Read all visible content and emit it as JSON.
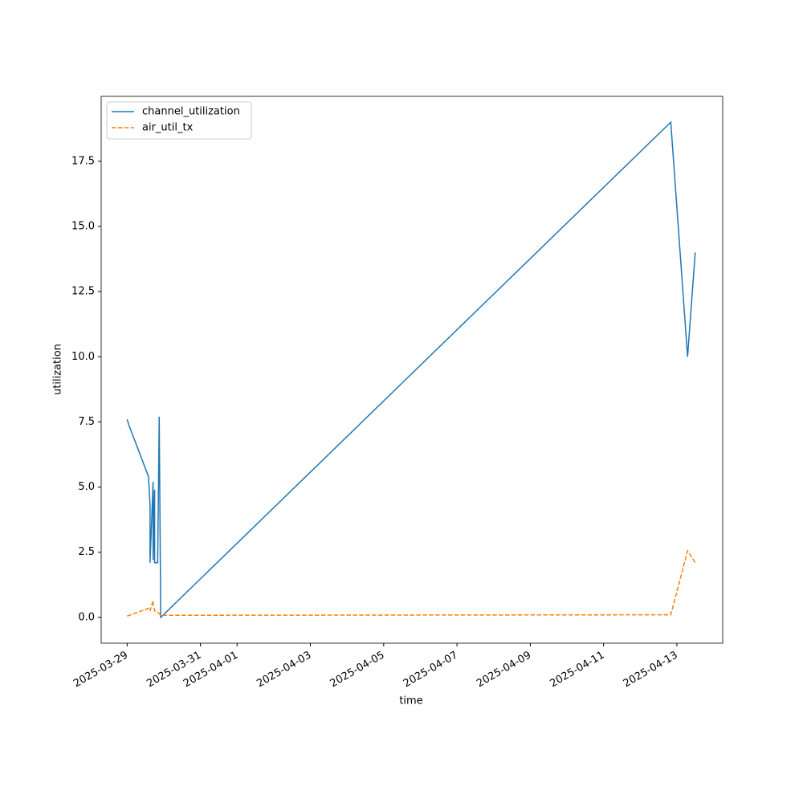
{
  "chart_data": {
    "type": "line",
    "x_label": "time",
    "y_label": "utilization",
    "x": [
      "2025-03-29T00:00",
      "2025-03-29T01:00",
      "2025-03-29T14:00",
      "2025-03-29T15:00",
      "2025-03-29T15:00",
      "2025-03-29T17:00",
      "2025-03-29T17:00",
      "2025-03-29T18:00",
      "2025-03-29T18:00",
      "2025-03-29T20:00",
      "2025-03-29T21:00",
      "2025-03-29T22:00",
      "2025-04-12T20:00",
      "2025-04-13T07:00",
      "2025-04-13T12:00"
    ],
    "series": [
      {
        "name": "channel_utilization",
        "color": "#1f77b4",
        "linestyle": "solid",
        "values": [
          7.6,
          7.4,
          5.4,
          4.3,
          2.1,
          5.2,
          2.2,
          4.9,
          2.1,
          2.1,
          7.7,
          0.0,
          19.0,
          10.0,
          14.0
        ]
      },
      {
        "name": "air_util_tx",
        "color": "#ff7f0e",
        "linestyle": "dashed",
        "values": [
          0.05,
          0.07,
          0.35,
          0.3,
          0.25,
          0.65,
          0.5,
          0.3,
          0.25,
          0.2,
          0.15,
          0.08,
          0.1,
          2.55,
          2.1
        ]
      }
    ],
    "xlim": [
      "2025-03-28T07:00",
      "2025-04-14T06:00"
    ],
    "xticks": [
      "2025-03-29",
      "2025-03-31",
      "2025-04-01",
      "2025-04-03",
      "2025-04-05",
      "2025-04-07",
      "2025-04-09",
      "2025-04-11",
      "2025-04-13"
    ],
    "ylim": [
      -0.99,
      19.99
    ],
    "yticks": [
      {
        "value": 0,
        "label": "0.0"
      },
      2.5,
      {
        "value": 5,
        "label": "5.0"
      },
      7.5,
      {
        "value": 10,
        "label": "10.0"
      },
      12.5,
      {
        "value": 15,
        "label": "15.0"
      },
      17.5
    ],
    "legend": "upper left",
    "grid": false
  }
}
